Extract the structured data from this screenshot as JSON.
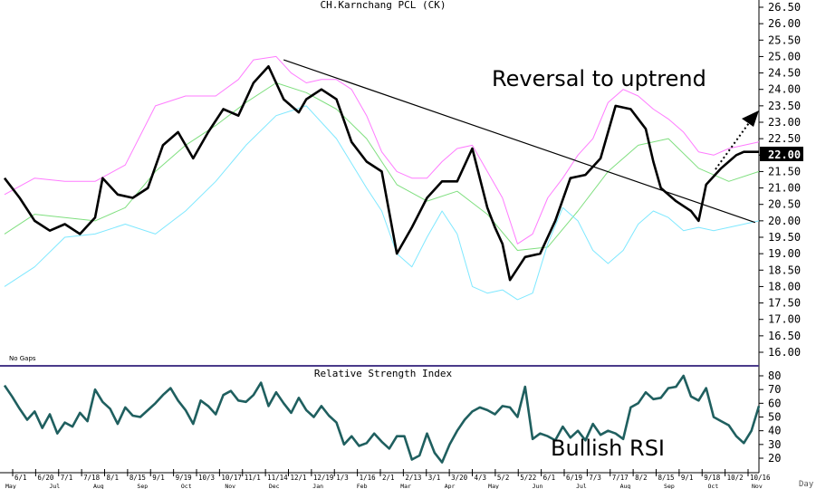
{
  "chart_data": [
    {
      "type": "line",
      "title": "CH.Karnchang PCL (CK)",
      "ylim": [
        15.5,
        26.5
      ],
      "y_ticks": [
        "26.50",
        "26.00",
        "25.50",
        "25.00",
        "24.50",
        "24.00",
        "23.50",
        "23.00",
        "22.50",
        "22.00",
        "21.50",
        "21.00",
        "20.50",
        "20.00",
        "19.50",
        "19.00",
        "18.50",
        "18.00",
        "17.50",
        "17.00",
        "16.50",
        "16.00"
      ],
      "current_price": "22.00",
      "note": "No Gaps",
      "annotations": [
        {
          "text": "Reversal to uptrend"
        }
      ],
      "trendline": {
        "x": [
          0.37,
          0.995
        ],
        "y": [
          24.9,
          19.95
        ]
      },
      "series": [
        {
          "role": "price",
          "color": "#000000",
          "x": [
            0,
            0.02,
            0.04,
            0.06,
            0.08,
            0.1,
            0.12,
            0.13,
            0.15,
            0.17,
            0.19,
            0.21,
            0.23,
            0.25,
            0.27,
            0.29,
            0.31,
            0.33,
            0.35,
            0.36,
            0.37,
            0.39,
            0.4,
            0.42,
            0.44,
            0.46,
            0.48,
            0.5,
            0.52,
            0.54,
            0.56,
            0.58,
            0.6,
            0.62,
            0.64,
            0.65,
            0.66,
            0.67,
            0.69,
            0.71,
            0.73,
            0.75,
            0.77,
            0.79,
            0.81,
            0.83,
            0.85,
            0.86,
            0.87,
            0.89,
            0.91,
            0.92,
            0.93,
            0.95,
            0.96,
            0.97,
            0.98,
            1.0
          ],
          "y": [
            21.3,
            20.7,
            20.0,
            19.7,
            19.9,
            19.6,
            20.1,
            21.3,
            20.8,
            20.7,
            21.0,
            22.3,
            22.7,
            21.9,
            22.7,
            23.4,
            23.2,
            24.2,
            24.7,
            24.2,
            23.7,
            23.3,
            23.7,
            24.0,
            23.7,
            22.4,
            21.8,
            21.5,
            19.0,
            19.8,
            20.7,
            21.2,
            21.2,
            22.2,
            20.4,
            19.8,
            19.3,
            18.2,
            18.9,
            19.0,
            20.0,
            21.3,
            21.4,
            21.9,
            23.5,
            23.4,
            22.8,
            21.8,
            21.0,
            20.6,
            20.3,
            20.0,
            21.1,
            21.6,
            21.8,
            22.0,
            22.1,
            22.1
          ]
        },
        {
          "role": "upper-band",
          "color": "#ff7bff",
          "x": [
            0,
            0.04,
            0.08,
            0.12,
            0.16,
            0.2,
            0.24,
            0.28,
            0.31,
            0.33,
            0.36,
            0.38,
            0.4,
            0.42,
            0.44,
            0.46,
            0.48,
            0.5,
            0.52,
            0.54,
            0.56,
            0.58,
            0.6,
            0.62,
            0.64,
            0.66,
            0.68,
            0.7,
            0.72,
            0.74,
            0.76,
            0.78,
            0.8,
            0.82,
            0.84,
            0.86,
            0.88,
            0.9,
            0.92,
            0.94,
            0.96,
            1.0
          ],
          "y": [
            20.8,
            21.3,
            21.2,
            21.2,
            21.7,
            23.5,
            23.8,
            23.8,
            24.3,
            24.9,
            25.0,
            24.5,
            24.2,
            24.3,
            24.3,
            24.0,
            23.2,
            22.1,
            21.5,
            21.3,
            21.3,
            21.8,
            22.2,
            22.3,
            21.5,
            20.7,
            19.3,
            19.6,
            20.7,
            21.3,
            22.0,
            22.5,
            23.6,
            24.0,
            23.8,
            23.4,
            23.1,
            22.7,
            22.1,
            22.0,
            22.2,
            22.4
          ]
        },
        {
          "role": "middle-band",
          "color": "#7fdf7f",
          "x": [
            0,
            0.04,
            0.08,
            0.12,
            0.16,
            0.2,
            0.24,
            0.28,
            0.32,
            0.36,
            0.4,
            0.44,
            0.48,
            0.52,
            0.56,
            0.6,
            0.64,
            0.68,
            0.72,
            0.76,
            0.8,
            0.84,
            0.88,
            0.92,
            0.96,
            1.0
          ],
          "y": [
            19.6,
            20.2,
            20.1,
            20.0,
            20.4,
            21.5,
            22.3,
            22.9,
            23.6,
            24.2,
            23.9,
            23.4,
            22.5,
            21.1,
            20.6,
            20.9,
            20.2,
            19.1,
            19.2,
            20.3,
            21.5,
            22.3,
            22.5,
            21.6,
            21.2,
            21.5
          ]
        },
        {
          "role": "lower-band",
          "color": "#7fe8ff",
          "x": [
            0,
            0.04,
            0.08,
            0.12,
            0.16,
            0.2,
            0.24,
            0.28,
            0.32,
            0.36,
            0.4,
            0.44,
            0.48,
            0.5,
            0.52,
            0.54,
            0.56,
            0.58,
            0.6,
            0.62,
            0.64,
            0.66,
            0.68,
            0.7,
            0.72,
            0.74,
            0.76,
            0.78,
            0.8,
            0.82,
            0.84,
            0.86,
            0.88,
            0.9,
            0.92,
            0.94,
            0.96,
            1.0
          ],
          "y": [
            18.0,
            18.6,
            19.5,
            19.6,
            19.9,
            19.6,
            20.3,
            21.2,
            22.3,
            23.2,
            23.5,
            22.5,
            21.0,
            20.3,
            19.0,
            18.6,
            19.5,
            20.3,
            19.6,
            18.0,
            17.8,
            17.9,
            17.6,
            17.8,
            19.3,
            20.4,
            20.0,
            19.1,
            18.7,
            19.1,
            19.9,
            20.3,
            20.1,
            19.7,
            19.8,
            19.7,
            19.8,
            20.0
          ]
        }
      ]
    },
    {
      "type": "line",
      "title": "Relative Strength Index",
      "ylim": [
        15,
        85
      ],
      "y_ticks": [
        "80",
        "70",
        "60",
        "50",
        "40",
        "30",
        "20"
      ],
      "annotations": [
        {
          "text": "Bullish RSI"
        }
      ],
      "series": [
        {
          "role": "rsi",
          "color": "#1f5f5f",
          "x": [
            0,
            0.01,
            0.02,
            0.03,
            0.04,
            0.05,
            0.06,
            0.07,
            0.08,
            0.09,
            0.1,
            0.11,
            0.12,
            0.13,
            0.14,
            0.15,
            0.16,
            0.17,
            0.18,
            0.19,
            0.2,
            0.21,
            0.22,
            0.23,
            0.24,
            0.25,
            0.26,
            0.27,
            0.28,
            0.29,
            0.3,
            0.31,
            0.32,
            0.33,
            0.34,
            0.35,
            0.36,
            0.37,
            0.38,
            0.39,
            0.4,
            0.41,
            0.42,
            0.43,
            0.44,
            0.45,
            0.46,
            0.47,
            0.48,
            0.49,
            0.5,
            0.51,
            0.52,
            0.53,
            0.54,
            0.55,
            0.56,
            0.57,
            0.58,
            0.59,
            0.6,
            0.61,
            0.62,
            0.63,
            0.64,
            0.65,
            0.66,
            0.67,
            0.68,
            0.69,
            0.7,
            0.71,
            0.72,
            0.73,
            0.74,
            0.75,
            0.76,
            0.77,
            0.78,
            0.79,
            0.8,
            0.81,
            0.82,
            0.83,
            0.84,
            0.85,
            0.86,
            0.87,
            0.88,
            0.89,
            0.9,
            0.91,
            0.92,
            0.93,
            0.94,
            0.95,
            0.96,
            0.97,
            0.98,
            0.99,
            1.0
          ],
          "y": [
            73,
            65,
            56,
            48,
            54,
            42,
            52,
            38,
            46,
            43,
            53,
            47,
            70,
            61,
            56,
            45,
            57,
            51,
            50,
            55,
            60,
            66,
            71,
            62,
            55,
            45,
            62,
            58,
            52,
            66,
            69,
            62,
            61,
            66,
            75,
            58,
            68,
            60,
            53,
            64,
            55,
            50,
            58,
            51,
            46,
            30,
            36,
            29,
            31,
            38,
            32,
            27,
            36,
            36,
            19,
            22,
            38,
            24,
            17,
            30,
            40,
            48,
            54,
            57,
            55,
            52,
            58,
            57,
            50,
            72,
            34,
            38,
            36,
            33,
            43,
            35,
            40,
            33,
            45,
            37,
            40,
            38,
            34,
            57,
            60,
            68,
            63,
            64,
            71,
            72,
            80,
            65,
            62,
            71,
            50,
            47,
            44,
            36,
            31,
            40,
            58
          ]
        }
      ]
    }
  ],
  "x_axis": {
    "dates": [
      "6/1",
      "6/20",
      "7/1",
      "7/18",
      "8/1",
      "8/15",
      "9/1",
      "9/19",
      "10/3",
      "10/17",
      "11/1",
      "11/14",
      "12/1",
      "12/19",
      "1/3",
      "1/16",
      "2/1",
      "2/13",
      "3/1",
      "3/20",
      "4/3",
      "5/2",
      "5/22",
      "6/1",
      "6/19",
      "7/3",
      "7/17",
      "8/2",
      "8/15",
      "9/1",
      "9/18",
      "10/2",
      "10/16"
    ],
    "months": [
      "May",
      "Jul",
      "Aug",
      "Sep",
      "Oct",
      "Nov",
      "Dec",
      "Jan",
      "Feb",
      "Mar",
      "Apr",
      "May",
      "Jun",
      "Jul",
      "Aug",
      "Sep",
      "Oct",
      "Nov"
    ],
    "unit": "Day"
  }
}
